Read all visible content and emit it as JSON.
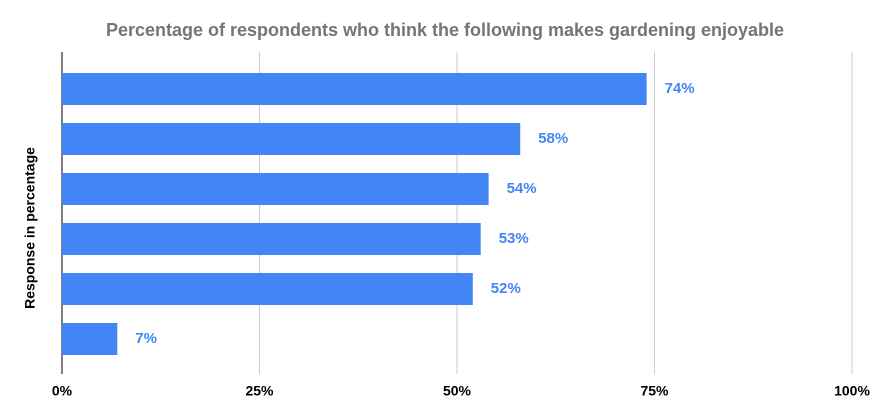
{
  "chart_data": {
    "type": "hbar",
    "title": "Percentage of respondents who think the following makes gardening enjoyable",
    "y_label": "Response in percentage",
    "categories": [
      null,
      null,
      null,
      null,
      null,
      null
    ],
    "values": [
      74,
      58,
      54,
      53,
      52,
      7
    ],
    "value_labels": [
      "74%",
      "58%",
      "54%",
      "53%",
      "52%",
      "7%"
    ],
    "color": "#4285f4",
    "xlim": [
      0,
      100
    ],
    "xticks": [
      {
        "value": 0,
        "label": "0%"
      },
      {
        "value": 25,
        "label": "25%"
      },
      {
        "value": 50,
        "label": "50%"
      },
      {
        "value": 75,
        "label": "75%"
      },
      {
        "value": 100,
        "label": "100%"
      }
    ],
    "grid": true
  }
}
